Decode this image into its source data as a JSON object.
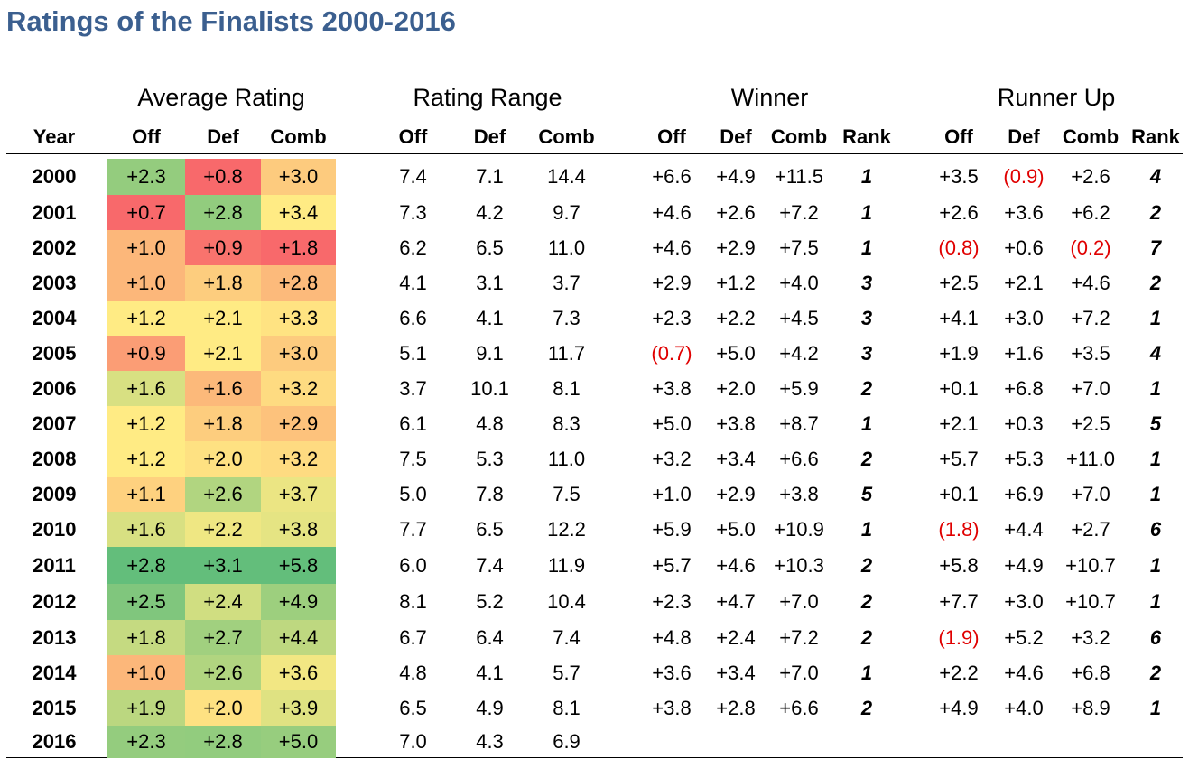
{
  "title": "Ratings of the Finalists 2000-2016",
  "groups": [
    "Average Rating",
    "Rating Range",
    "Winner",
    "Runner Up"
  ],
  "columns": [
    "Year",
    "Off",
    "Def",
    "Comb",
    "Off",
    "Def",
    "Comb",
    "Off",
    "Def",
    "Comb",
    "Rank",
    "Off",
    "Def",
    "Comb",
    "Rank"
  ],
  "colors": {
    "title": "#3b5f8f",
    "negative": "#e00000",
    "heat_low": "#f8696b",
    "heat_mid": "#ffeb84",
    "heat_high": "#63be7b"
  },
  "rows": [
    {
      "year": "2000",
      "avg": [
        "+2.3",
        "+0.8",
        "+3.0"
      ],
      "range": [
        "7.4",
        "7.1",
        "14.4"
      ],
      "winner": [
        "+6.6",
        "+4.9",
        "+11.5",
        "1"
      ],
      "runner": [
        "+3.5",
        "(0.9)",
        "+2.6",
        "4"
      ]
    },
    {
      "year": "2001",
      "avg": [
        "+0.7",
        "+2.8",
        "+3.4"
      ],
      "range": [
        "7.3",
        "4.2",
        "9.7"
      ],
      "winner": [
        "+4.6",
        "+2.6",
        "+7.2",
        "1"
      ],
      "runner": [
        "+2.6",
        "+3.6",
        "+6.2",
        "2"
      ]
    },
    {
      "year": "2002",
      "avg": [
        "+1.0",
        "+0.9",
        "+1.8"
      ],
      "range": [
        "6.2",
        "6.5",
        "11.0"
      ],
      "winner": [
        "+4.6",
        "+2.9",
        "+7.5",
        "1"
      ],
      "runner": [
        "(0.8)",
        "+0.6",
        "(0.2)",
        "7"
      ]
    },
    {
      "year": "2003",
      "avg": [
        "+1.0",
        "+1.8",
        "+2.8"
      ],
      "range": [
        "4.1",
        "3.1",
        "3.7"
      ],
      "winner": [
        "+2.9",
        "+1.2",
        "+4.0",
        "3"
      ],
      "runner": [
        "+2.5",
        "+2.1",
        "+4.6",
        "2"
      ]
    },
    {
      "year": "2004",
      "avg": [
        "+1.2",
        "+2.1",
        "+3.3"
      ],
      "range": [
        "6.6",
        "4.1",
        "7.3"
      ],
      "winner": [
        "+2.3",
        "+2.2",
        "+4.5",
        "3"
      ],
      "runner": [
        "+4.1",
        "+3.0",
        "+7.2",
        "1"
      ]
    },
    {
      "year": "2005",
      "avg": [
        "+0.9",
        "+2.1",
        "+3.0"
      ],
      "range": [
        "5.1",
        "9.1",
        "11.7"
      ],
      "winner": [
        "(0.7)",
        "+5.0",
        "+4.2",
        "3"
      ],
      "runner": [
        "+1.9",
        "+1.6",
        "+3.5",
        "4"
      ]
    },
    {
      "year": "2006",
      "avg": [
        "+1.6",
        "+1.6",
        "+3.2"
      ],
      "range": [
        "3.7",
        "10.1",
        "8.1"
      ],
      "winner": [
        "+3.8",
        "+2.0",
        "+5.9",
        "2"
      ],
      "runner": [
        "+0.1",
        "+6.8",
        "+7.0",
        "1"
      ]
    },
    {
      "year": "2007",
      "avg": [
        "+1.2",
        "+1.8",
        "+2.9"
      ],
      "range": [
        "6.1",
        "4.8",
        "8.3"
      ],
      "winner": [
        "+5.0",
        "+3.8",
        "+8.7",
        "1"
      ],
      "runner": [
        "+2.1",
        "+0.3",
        "+2.5",
        "5"
      ]
    },
    {
      "year": "2008",
      "avg": [
        "+1.2",
        "+2.0",
        "+3.2"
      ],
      "range": [
        "7.5",
        "5.3",
        "11.0"
      ],
      "winner": [
        "+3.2",
        "+3.4",
        "+6.6",
        "2"
      ],
      "runner": [
        "+5.7",
        "+5.3",
        "+11.0",
        "1"
      ]
    },
    {
      "year": "2009",
      "avg": [
        "+1.1",
        "+2.6",
        "+3.7"
      ],
      "range": [
        "5.0",
        "7.8",
        "7.5"
      ],
      "winner": [
        "+1.0",
        "+2.9",
        "+3.8",
        "5"
      ],
      "runner": [
        "+0.1",
        "+6.9",
        "+7.0",
        "1"
      ]
    },
    {
      "year": "2010",
      "avg": [
        "+1.6",
        "+2.2",
        "+3.8"
      ],
      "range": [
        "7.7",
        "6.5",
        "12.2"
      ],
      "winner": [
        "+5.9",
        "+5.0",
        "+10.9",
        "1"
      ],
      "runner": [
        "(1.8)",
        "+4.4",
        "+2.7",
        "6"
      ]
    },
    {
      "year": "2011",
      "avg": [
        "+2.8",
        "+3.1",
        "+5.8"
      ],
      "range": [
        "6.0",
        "7.4",
        "11.9"
      ],
      "winner": [
        "+5.7",
        "+4.6",
        "+10.3",
        "2"
      ],
      "runner": [
        "+5.8",
        "+4.9",
        "+10.7",
        "1"
      ]
    },
    {
      "year": "2012",
      "avg": [
        "+2.5",
        "+2.4",
        "+4.9"
      ],
      "range": [
        "8.1",
        "5.2",
        "10.4"
      ],
      "winner": [
        "+2.3",
        "+4.7",
        "+7.0",
        "2"
      ],
      "runner": [
        "+7.7",
        "+3.0",
        "+10.7",
        "1"
      ]
    },
    {
      "year": "2013",
      "avg": [
        "+1.8",
        "+2.7",
        "+4.4"
      ],
      "range": [
        "6.7",
        "6.4",
        "7.4"
      ],
      "winner": [
        "+4.8",
        "+2.4",
        "+7.2",
        "2"
      ],
      "runner": [
        "(1.9)",
        "+5.2",
        "+3.2",
        "6"
      ]
    },
    {
      "year": "2014",
      "avg": [
        "+1.0",
        "+2.6",
        "+3.6"
      ],
      "range": [
        "4.8",
        "4.1",
        "5.7"
      ],
      "winner": [
        "+3.6",
        "+3.4",
        "+7.0",
        "1"
      ],
      "runner": [
        "+2.2",
        "+4.6",
        "+6.8",
        "2"
      ]
    },
    {
      "year": "2015",
      "avg": [
        "+1.9",
        "+2.0",
        "+3.9"
      ],
      "range": [
        "6.5",
        "4.9",
        "8.1"
      ],
      "winner": [
        "+3.8",
        "+2.8",
        "+6.6",
        "2"
      ],
      "runner": [
        "+4.9",
        "+4.0",
        "+8.9",
        "1"
      ]
    },
    {
      "year": "2016",
      "avg": [
        "+2.3",
        "+2.8",
        "+5.0"
      ],
      "range": [
        "7.0",
        "4.3",
        "6.9"
      ],
      "winner": [
        "",
        "",
        "",
        ""
      ],
      "runner": [
        "",
        "",
        "",
        ""
      ]
    }
  ]
}
